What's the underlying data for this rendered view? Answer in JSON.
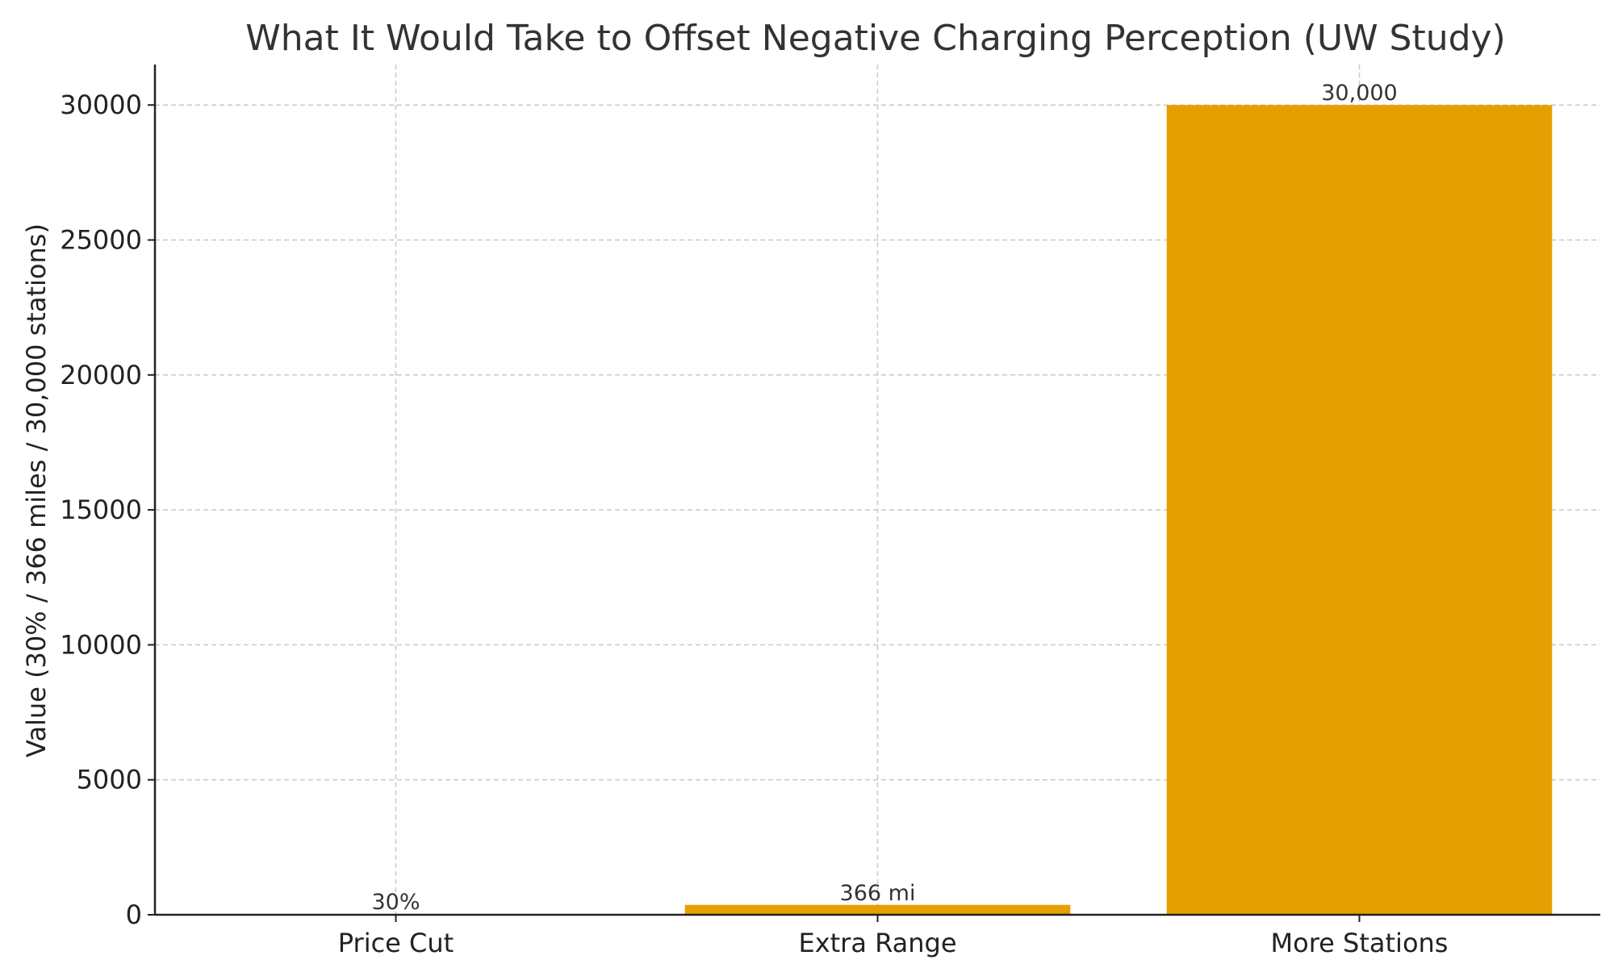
{
  "chart_data": {
    "type": "bar",
    "title": "What It Would Take to Offset Negative Charging Perception (UW Study)",
    "xlabel": "",
    "ylabel": "Value (30% / 366 miles / 30,000 stations)",
    "categories": [
      "Price Cut",
      "Extra Range",
      "More Stations"
    ],
    "values": [
      30,
      366,
      30000
    ],
    "data_labels": [
      "30%",
      "366 mi",
      "30,000"
    ],
    "ylim": [
      0,
      31500
    ],
    "yticks": [
      0,
      5000,
      10000,
      15000,
      20000,
      25000,
      30000
    ],
    "grid": true,
    "bar_color": "#E69F00",
    "legend": "none"
  }
}
